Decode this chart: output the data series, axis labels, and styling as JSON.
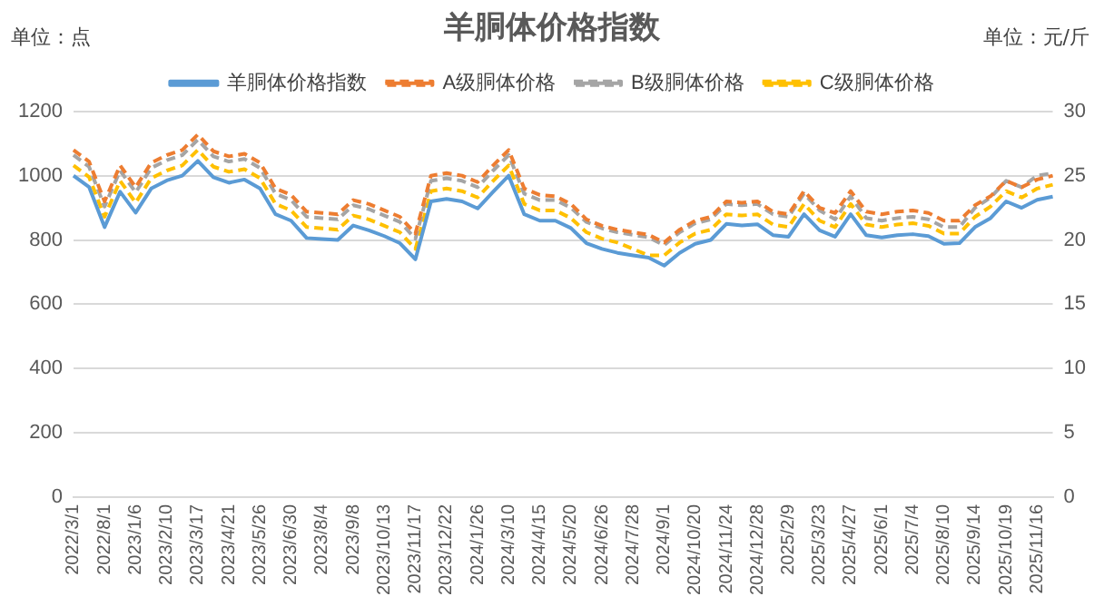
{
  "chart_data": {
    "type": "line",
    "title": "羊胴体价格指数",
    "ylabel": "单位：点",
    "y2label": "单位：元/斤",
    "categories": [
      "2022/3/1",
      null,
      "2022/8/1",
      null,
      "2023/1/6",
      null,
      "2023/2/10",
      null,
      "2023/3/17",
      null,
      "2023/4/21",
      null,
      "2023/5/26",
      null,
      "2023/6/30",
      null,
      "2023/8/4",
      null,
      "2023/9/8",
      null,
      "2023/10/13",
      null,
      "2023/11/17",
      null,
      "2023/12/22",
      null,
      "2024/1/26",
      null,
      "2024/3/10",
      null,
      "2024/4/15",
      null,
      "2024/5/20",
      null,
      "2024/6/26",
      null,
      "2024/7/28",
      null,
      "2024/9/1",
      null,
      "2024/10/20",
      null,
      "2024/11/24",
      null,
      "2024/12/28",
      null,
      "2025/2/9",
      null,
      "2025/3/23",
      null,
      "2025/4/27",
      null,
      "2025/6/1",
      null,
      "2025/7/4",
      null,
      "2025/8/10",
      null,
      "2025/9/14",
      null,
      "2025/10/19",
      null,
      "2025/11/16",
      null
    ],
    "series": [
      {
        "name": "羊胴体价格指数",
        "color": "#5b9bd5",
        "line_style": "solid",
        "values": [
          1000,
          965,
          840,
          950,
          885,
          960,
          985,
          1000,
          1046,
          995,
          978,
          988,
          960,
          880,
          860,
          806,
          803,
          800,
          845,
          830,
          812,
          790,
          740,
          920,
          928,
          920,
          898,
          950,
          1000,
          880,
          860,
          860,
          837,
          790,
          772,
          760,
          752,
          745,
          720,
          760,
          788,
          800,
          850,
          845,
          849,
          815,
          810,
          880,
          830,
          810,
          880,
          815,
          808,
          815,
          818,
          812,
          788,
          790,
          840,
          868,
          920,
          900,
          925,
          935
        ]
      },
      {
        "name": "A级胴体价格",
        "color": "#ed7d31",
        "line_style": "dashed",
        "axis": "y2",
        "values": [
          27.0,
          26.1,
          23.0,
          25.8,
          24.1,
          26.0,
          26.6,
          27.0,
          28.2,
          26.9,
          26.5,
          26.7,
          26.0,
          24.0,
          23.5,
          22.2,
          22.1,
          22.0,
          23.1,
          22.8,
          22.3,
          21.8,
          20.5,
          25.0,
          25.2,
          25.0,
          24.5,
          25.8,
          27.0,
          24.0,
          23.5,
          23.4,
          22.8,
          21.6,
          21.1,
          20.8,
          20.6,
          20.4,
          19.8,
          20.8,
          21.5,
          21.8,
          23.0,
          22.9,
          23.0,
          22.2,
          22.0,
          23.8,
          22.5,
          22.1,
          23.8,
          22.2,
          22.0,
          22.2,
          22.3,
          22.1,
          21.5,
          21.5,
          22.7,
          23.4,
          24.6,
          24.1,
          24.7,
          25.0
        ]
      },
      {
        "name": "B级胴体价格",
        "color": "#a5a5a5",
        "line_style": "dashed",
        "axis": "y2",
        "values": [
          26.6,
          25.7,
          22.6,
          25.4,
          23.7,
          25.6,
          26.2,
          26.6,
          27.8,
          26.5,
          26.1,
          26.3,
          25.6,
          23.6,
          23.1,
          21.8,
          21.7,
          21.6,
          22.7,
          22.4,
          21.9,
          21.4,
          20.1,
          24.6,
          24.8,
          24.6,
          24.1,
          25.4,
          26.6,
          23.6,
          23.1,
          23.1,
          22.5,
          21.4,
          20.9,
          20.6,
          20.4,
          20.2,
          19.6,
          20.6,
          21.3,
          21.6,
          22.8,
          22.7,
          22.8,
          22.0,
          21.8,
          23.6,
          22.3,
          21.6,
          23.4,
          21.7,
          21.5,
          21.7,
          21.8,
          21.6,
          21.0,
          21.0,
          22.5,
          23.3,
          24.6,
          24.1,
          25.0,
          25.2
        ]
      },
      {
        "name": "C级胴体价格",
        "color": "#ffc000",
        "line_style": "dashed",
        "axis": "y2",
        "values": [
          25.8,
          24.9,
          21.8,
          24.6,
          22.9,
          24.8,
          25.4,
          25.8,
          27.0,
          25.7,
          25.3,
          25.5,
          24.8,
          22.8,
          22.3,
          21.0,
          20.9,
          20.8,
          21.9,
          21.6,
          21.1,
          20.6,
          19.3,
          23.8,
          24.0,
          23.8,
          23.3,
          24.6,
          25.8,
          22.8,
          22.3,
          22.3,
          21.7,
          20.6,
          20.1,
          19.8,
          19.3,
          18.8,
          18.8,
          19.8,
          20.5,
          20.8,
          22.0,
          21.9,
          22.0,
          21.2,
          21.0,
          22.8,
          21.5,
          21.0,
          22.8,
          21.2,
          21.0,
          21.2,
          21.3,
          21.1,
          20.5,
          20.5,
          21.8,
          22.6,
          23.8,
          23.3,
          24.0,
          24.3
        ]
      }
    ],
    "ylim": [
      0,
      1200
    ],
    "yticks": [
      0,
      200,
      400,
      600,
      800,
      1000,
      1200
    ],
    "y2lim": [
      0,
      30
    ],
    "y2ticks": [
      0,
      5,
      10,
      15,
      20,
      25,
      30
    ],
    "grid": "y",
    "legend": "top",
    "marker": "none"
  }
}
